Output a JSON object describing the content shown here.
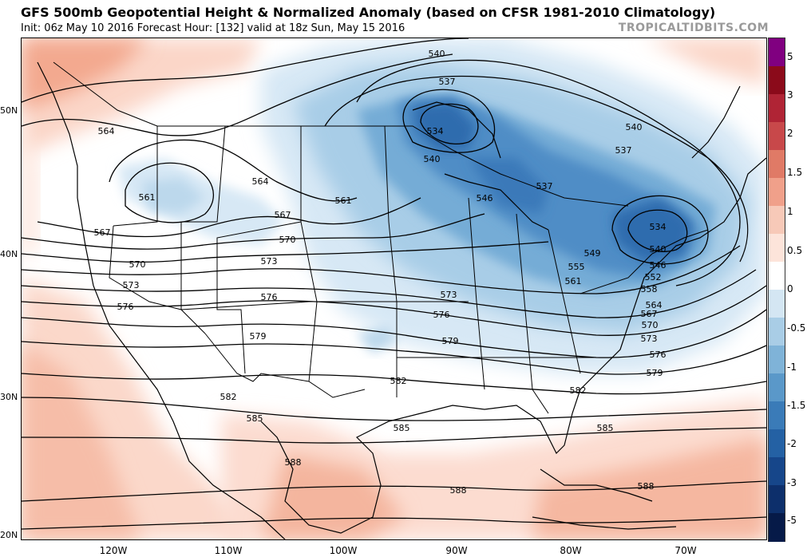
{
  "header": {
    "title": "GFS 500mb Geopotential Height & Normalized Anomaly (based on CFSR 1981-2010 Climatology)",
    "subtitle": "Init: 06z May 10 2016   Forecast Hour: [132]   valid at 18z Sun, May 15 2016",
    "brand": "TROPICALTIDBITS.COM"
  },
  "axes": {
    "lat_labels": [
      "50N",
      "40N",
      "30N",
      "20N"
    ],
    "lon_labels": [
      "120W",
      "110W",
      "100W",
      "90W",
      "80W",
      "70W"
    ]
  },
  "colorbar": {
    "labels": [
      "5",
      "3",
      "2",
      "1.5",
      "1",
      "0.5",
      "0",
      "-0.5",
      "-1",
      "-1.5",
      "-2",
      "-3",
      "-5"
    ],
    "colors": [
      "#800080",
      "#8b0a1a",
      "#b02435",
      "#c8484a",
      "#e07a66",
      "#f0a08a",
      "#f7c9b8",
      "#fde4da",
      "#ffffff",
      "#d4e6f3",
      "#a9cde6",
      "#7fb3d8",
      "#5a98c9",
      "#3a7bb8",
      "#2461a4",
      "#16468a",
      "#0d2f6b",
      "#061a48"
    ]
  },
  "contour_labels": [
    "540",
    "537",
    "534",
    "540",
    "540",
    "537",
    "564",
    "561",
    "564",
    "561",
    "546",
    "537",
    "534",
    "567",
    "567",
    "570",
    "549",
    "540",
    "570",
    "573",
    "555",
    "546",
    "573",
    "561",
    "552",
    "558",
    "576",
    "576",
    "573",
    "564",
    "576",
    "567",
    "570",
    "579",
    "579",
    "573",
    "576",
    "579",
    "582",
    "582",
    "582",
    "585",
    "585",
    "585",
    "588",
    "588",
    "588"
  ]
}
